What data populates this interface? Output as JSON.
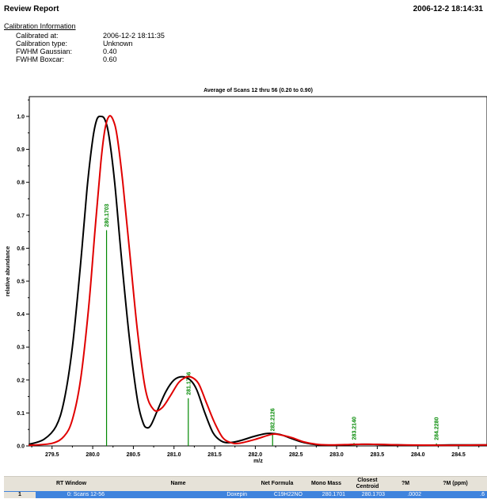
{
  "report": {
    "title": "Review Report",
    "date": "2006-12-2 18:14:31"
  },
  "calibration": {
    "title": "Calibration Information",
    "rows": [
      {
        "label": "Calibrated at:",
        "value": "2006-12-2 18:11:35"
      },
      {
        "label": "Calibration type:",
        "value": "Unknown"
      },
      {
        "label": "FWHM Gaussian:",
        "value": "0.40"
      },
      {
        "label": "FWHM Boxcar:",
        "value": "0.60"
      }
    ]
  },
  "colors": {
    "black_series": "#000000",
    "red_series": "#e00000",
    "centroid": "#008800",
    "table_header": "#e6e2d8",
    "table_selected": "#3f83dd"
  },
  "chart_data": {
    "type": "line",
    "title": "Average of Scans 12 thru 56 (0.20 to 0.90)",
    "xlabel": "m/z",
    "ylabel": "relative abundance",
    "xlim": [
      279.22,
      284.85
    ],
    "ylim": [
      0,
      1.06
    ],
    "xticks": [
      "279.5",
      "280.0",
      "280.5",
      "281.0",
      "281.5",
      "282.0",
      "282.5",
      "283.0",
      "283.5",
      "284.0",
      "284.5"
    ],
    "yticks": [
      "0.0",
      "0.1",
      "0.2",
      "0.3",
      "0.4",
      "0.5",
      "0.6",
      "0.7",
      "0.8",
      "0.9",
      "1.0"
    ],
    "grid": false,
    "series": [
      {
        "color": "#000000",
        "x": [
          279.22,
          279.4,
          279.55,
          279.65,
          279.75,
          279.85,
          279.93,
          280.0,
          280.05,
          280.1,
          280.15,
          280.2,
          280.27,
          280.35,
          280.45,
          280.55,
          280.62,
          280.67,
          280.72,
          280.8,
          280.9,
          281.0,
          281.1,
          281.2,
          281.28,
          281.38,
          281.48,
          281.58,
          281.68,
          281.8,
          282.0,
          282.15,
          282.3,
          282.45,
          282.6,
          282.75,
          283.0,
          283.3,
          283.6,
          284.0,
          284.4,
          284.85
        ],
        "y": [
          0.005,
          0.02,
          0.06,
          0.14,
          0.3,
          0.55,
          0.78,
          0.93,
          0.99,
          1.0,
          0.99,
          0.94,
          0.8,
          0.58,
          0.33,
          0.14,
          0.07,
          0.055,
          0.065,
          0.11,
          0.165,
          0.2,
          0.21,
          0.2,
          0.17,
          0.1,
          0.04,
          0.015,
          0.01,
          0.015,
          0.03,
          0.038,
          0.035,
          0.022,
          0.01,
          0.004,
          0.002,
          0.005,
          0.004,
          0.002,
          0.003,
          0.003
        ]
      },
      {
        "color": "#e00000",
        "x": [
          279.22,
          279.5,
          279.65,
          279.75,
          279.85,
          279.95,
          280.03,
          280.1,
          280.15,
          280.2,
          280.25,
          280.3,
          280.37,
          280.45,
          280.55,
          280.65,
          280.75,
          280.85,
          280.95,
          281.05,
          281.12,
          281.2,
          281.3,
          281.4,
          281.5,
          281.6,
          281.7,
          281.8,
          282.0,
          282.2,
          282.3,
          282.45,
          282.6,
          282.75,
          282.9,
          283.1,
          283.4,
          283.8,
          284.2,
          284.5,
          284.85
        ],
        "y": [
          0.002,
          0.008,
          0.03,
          0.08,
          0.2,
          0.42,
          0.66,
          0.86,
          0.96,
          1.0,
          0.99,
          0.94,
          0.8,
          0.6,
          0.35,
          0.17,
          0.11,
          0.115,
          0.15,
          0.19,
          0.205,
          0.21,
          0.19,
          0.13,
          0.07,
          0.025,
          0.01,
          0.008,
          0.02,
          0.035,
          0.034,
          0.025,
          0.012,
          0.005,
          0.003,
          0.004,
          0.005,
          0.003,
          0.002,
          0.002,
          0.003
        ]
      }
    ],
    "centroids": [
      {
        "mz": 280.1703,
        "label": "280.1703",
        "height": 0.65
      },
      {
        "mz": 281.1756,
        "label": "281.1756",
        "height": 0.14
      },
      {
        "mz": 282.2126,
        "label": "282.2126",
        "height": 0.03
      },
      {
        "mz": 283.214,
        "label": "283.2140",
        "height": 0.004
      },
      {
        "mz": 284.228,
        "label": "284.2280",
        "height": 0.003
      }
    ]
  },
  "table": {
    "headers": [
      "",
      "RT Window",
      "Name",
      "Net Formula",
      "Mono Mass",
      "Closest Centroid",
      "?M",
      "?M (ppm)"
    ],
    "rows": [
      [
        "1",
        "0: Scans 12-56",
        "Doxepin",
        "C19H22NO",
        "280.1701",
        "280.1703",
        ".0002",
        ".6"
      ]
    ]
  }
}
